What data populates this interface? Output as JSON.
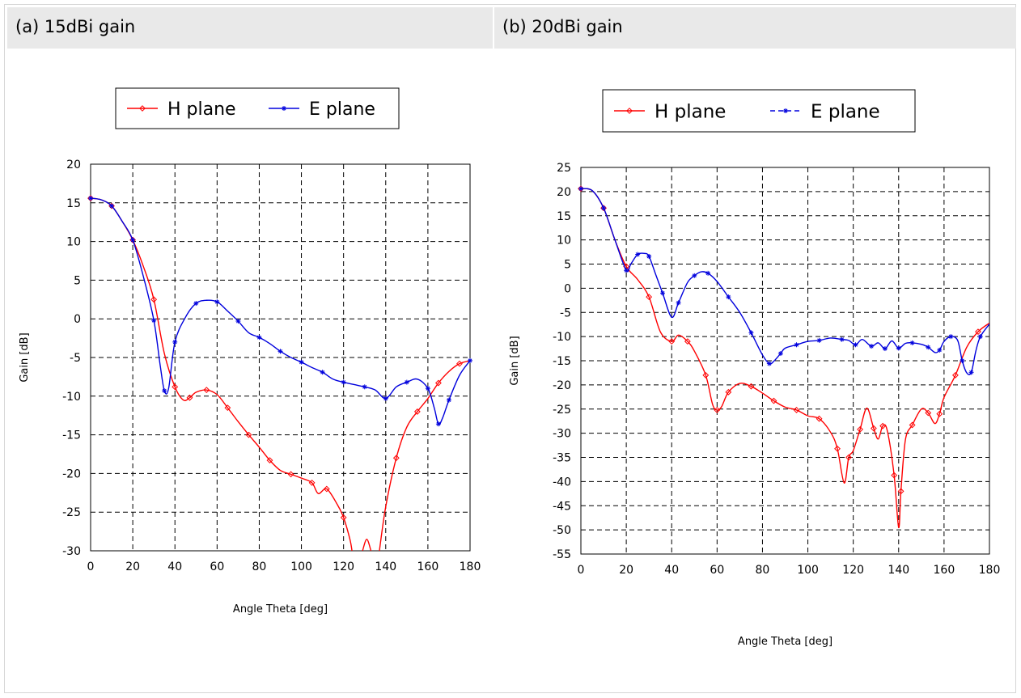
{
  "panels": {
    "a": {
      "caption": "(a) 15dBi gain"
    },
    "b": {
      "caption": "(b) 20dBi gain"
    }
  },
  "colors": {
    "h_plane": "#ff0000",
    "e_plane": "#0000dd",
    "grid": "#000000",
    "header_bg": "#e9e9e9"
  },
  "chart_data": [
    {
      "type": "line",
      "xlabel": "Angle Theta [deg]",
      "ylabel": "Gain [dB]",
      "xlim": [
        0,
        180
      ],
      "ylim": [
        -30,
        20
      ],
      "xticks": [
        0,
        20,
        40,
        60,
        80,
        100,
        120,
        140,
        160,
        180
      ],
      "yticks": [
        20,
        15,
        10,
        5,
        0,
        -5,
        -10,
        -15,
        -20,
        -25,
        -30
      ],
      "grid": true,
      "legend": "top",
      "series": [
        {
          "name": "H plane",
          "color": "#ff0000",
          "line_style": "solid",
          "marker": "diamond",
          "points": [
            [
              0,
              15.6
            ],
            [
              5,
              15.4
            ],
            [
              10,
              14.6
            ],
            [
              15,
              12.6
            ],
            [
              20,
              10.2
            ],
            [
              25,
              6.8
            ],
            [
              30,
              2.5
            ],
            [
              35,
              -4.5
            ],
            [
              40,
              -8.8
            ],
            [
              44,
              -10.5
            ],
            [
              47,
              -10.2
            ],
            [
              50,
              -9.5
            ],
            [
              55,
              -9.2
            ],
            [
              60,
              -9.8
            ],
            [
              65,
              -11.5
            ],
            [
              70,
              -13.3
            ],
            [
              75,
              -15
            ],
            [
              80,
              -16.6
            ],
            [
              85,
              -18.3
            ],
            [
              90,
              -19.6
            ],
            [
              95,
              -20.1
            ],
            [
              100,
              -20.6
            ],
            [
              105,
              -21.2
            ],
            [
              108,
              -22.6
            ],
            [
              112,
              -22
            ],
            [
              117,
              -24
            ],
            [
              120,
              -25.7
            ],
            [
              123,
              -28.5
            ],
            [
              124,
              -30
            ]
          ]
        },
        {
          "name": "H plane",
          "color": "#ff0000",
          "line_style": "solid",
          "marker": "diamond",
          "points": [
            [
              129,
              -30
            ],
            [
              131,
              -28.5
            ],
            [
              133,
              -30
            ]
          ]
        },
        {
          "name": "H plane",
          "color": "#ff0000",
          "line_style": "solid",
          "marker": "diamond",
          "points": [
            [
              137,
              -30
            ],
            [
              140,
              -24.3
            ],
            [
              145,
              -18
            ],
            [
              150,
              -14
            ],
            [
              155,
              -12
            ],
            [
              160,
              -10.3
            ],
            [
              165,
              -8.3
            ],
            [
              170,
              -6.8
            ],
            [
              175,
              -5.8
            ],
            [
              180,
              -5.4
            ]
          ]
        },
        {
          "name": "E plane",
          "color": "#0000dd",
          "line_style": "solid",
          "marker": "star",
          "points": [
            [
              0,
              15.6
            ],
            [
              5,
              15.4
            ],
            [
              10,
              14.6
            ],
            [
              15,
              12.6
            ],
            [
              20,
              10.2
            ],
            [
              25,
              5.5
            ],
            [
              30,
              -0.2
            ],
            [
              33,
              -6
            ],
            [
              35,
              -9.3
            ],
            [
              37,
              -9
            ],
            [
              40,
              -3
            ],
            [
              45,
              0.2
            ],
            [
              50,
              2
            ],
            [
              55,
              2.4
            ],
            [
              60,
              2.2
            ],
            [
              65,
              1
            ],
            [
              70,
              -0.3
            ],
            [
              75,
              -1.8
            ],
            [
              80,
              -2.4
            ],
            [
              85,
              -3.2
            ],
            [
              90,
              -4.2
            ],
            [
              95,
              -5
            ],
            [
              100,
              -5.6
            ],
            [
              105,
              -6.3
            ],
            [
              110,
              -6.9
            ],
            [
              115,
              -7.8
            ],
            [
              120,
              -8.2
            ],
            [
              125,
              -8.5
            ],
            [
              130,
              -8.8
            ],
            [
              135,
              -9.2
            ],
            [
              140,
              -10.3
            ],
            [
              145,
              -8.8
            ],
            [
              150,
              -8.2
            ],
            [
              155,
              -7.8
            ],
            [
              160,
              -9
            ],
            [
              163,
              -11.5
            ],
            [
              165,
              -13.6
            ],
            [
              167,
              -12.8
            ],
            [
              170,
              -10.5
            ],
            [
              175,
              -7.3
            ],
            [
              180,
              -5.4
            ]
          ]
        }
      ]
    },
    {
      "type": "line",
      "xlabel": "Angle Theta [deg]",
      "ylabel": "Gain [dB]",
      "xlim": [
        0,
        180
      ],
      "ylim": [
        -55,
        25
      ],
      "xticks": [
        0,
        20,
        40,
        60,
        80,
        100,
        120,
        140,
        160,
        180
      ],
      "yticks": [
        25,
        20,
        15,
        10,
        5,
        0,
        -5,
        -10,
        -15,
        -20,
        -25,
        -30,
        -35,
        -40,
        -45,
        -50,
        -55
      ],
      "grid": true,
      "legend": "top",
      "series": [
        {
          "name": "H plane",
          "color": "#ff0000",
          "line_style": "solid",
          "marker": "diamond",
          "points": [
            [
              0,
              20.6
            ],
            [
              5,
              20.2
            ],
            [
              10,
              16.6
            ],
            [
              15,
              10
            ],
            [
              20,
              4.5
            ],
            [
              25,
              1.8
            ],
            [
              30,
              -1.8
            ],
            [
              35,
              -9
            ],
            [
              40,
              -11
            ],
            [
              43,
              -9.7
            ],
            [
              47,
              -11
            ],
            [
              50,
              -13
            ],
            [
              55,
              -18
            ],
            [
              58,
              -24
            ],
            [
              60,
              -25.2
            ],
            [
              62,
              -24.5
            ],
            [
              65,
              -21.5
            ],
            [
              70,
              -19.7
            ],
            [
              75,
              -20.3
            ],
            [
              80,
              -21.7
            ],
            [
              85,
              -23.3
            ],
            [
              90,
              -24.6
            ],
            [
              95,
              -25.2
            ],
            [
              100,
              -26.4
            ],
            [
              105,
              -27
            ],
            [
              110,
              -29.8
            ],
            [
              113,
              -33.2
            ],
            [
              116,
              -40.3
            ],
            [
              118,
              -35
            ],
            [
              120,
              -33.6
            ],
            [
              123,
              -29.2
            ],
            [
              126,
              -24.8
            ],
            [
              129,
              -29
            ],
            [
              131,
              -31.2
            ],
            [
              133,
              -28.5
            ],
            [
              135,
              -29.5
            ],
            [
              138,
              -38.7
            ],
            [
              140,
              -49.5
            ],
            [
              141,
              -42
            ],
            [
              143,
              -31.3
            ],
            [
              146,
              -28.3
            ],
            [
              150,
              -25
            ],
            [
              153,
              -25.8
            ],
            [
              156,
              -28
            ],
            [
              158,
              -26
            ],
            [
              160,
              -22.6
            ],
            [
              165,
              -18
            ],
            [
              170,
              -12.2
            ],
            [
              175,
              -9
            ],
            [
              180,
              -7.2
            ]
          ]
        },
        {
          "name": "E plane",
          "color": "#0000dd",
          "line_style": "dashed",
          "marker": "star",
          "points": [
            [
              0,
              20.6
            ],
            [
              5,
              20.2
            ],
            [
              10,
              16.6
            ],
            [
              15,
              10
            ],
            [
              20,
              3.7
            ],
            [
              22,
              5
            ],
            [
              25,
              7
            ],
            [
              28,
              7.2
            ],
            [
              30,
              6.6
            ],
            [
              33,
              2.8
            ],
            [
              36,
              -1
            ],
            [
              40,
              -6
            ],
            [
              43,
              -3
            ],
            [
              47,
              1.2
            ],
            [
              50,
              2.6
            ],
            [
              53,
              3.4
            ],
            [
              56,
              3.1
            ],
            [
              60,
              1.4
            ],
            [
              65,
              -1.8
            ],
            [
              70,
              -5
            ],
            [
              75,
              -9.2
            ],
            [
              80,
              -13.8
            ],
            [
              83,
              -15.6
            ],
            [
              85,
              -15.1
            ],
            [
              88,
              -13.5
            ],
            [
              90,
              -12.4
            ],
            [
              95,
              -11.7
            ],
            [
              100,
              -11
            ],
            [
              105,
              -10.8
            ],
            [
              110,
              -10.3
            ],
            [
              115,
              -10.6
            ],
            [
              118,
              -10.8
            ],
            [
              121,
              -11.7
            ],
            [
              124,
              -10.6
            ],
            [
              128,
              -12
            ],
            [
              131,
              -11.3
            ],
            [
              134,
              -12.5
            ],
            [
              137,
              -10.9
            ],
            [
              140,
              -12.4
            ],
            [
              143,
              -11.4
            ],
            [
              146,
              -11.3
            ],
            [
              150,
              -11.6
            ],
            [
              153,
              -12.2
            ],
            [
              156,
              -13.3
            ],
            [
              158,
              -12.8
            ],
            [
              160,
              -11
            ],
            [
              163,
              -10
            ],
            [
              166,
              -10.8
            ],
            [
              168,
              -15
            ],
            [
              170,
              -17.5
            ],
            [
              172,
              -17.4
            ],
            [
              174,
              -13
            ],
            [
              176,
              -10
            ],
            [
              180,
              -7.4
            ]
          ]
        }
      ]
    }
  ]
}
